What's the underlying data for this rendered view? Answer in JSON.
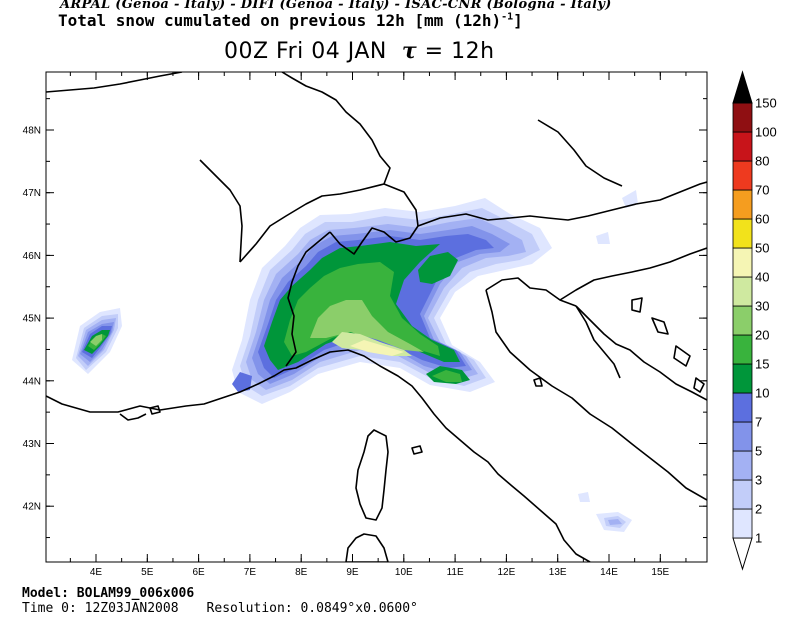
{
  "header": {
    "credits": "ARPAL (Genoa - Italy)  -  DIFI (Genoa - Italy)  -  ISAC-CNR (Bologna - Italy)",
    "title": "Total snow cumulated on previous 12h [mm (12h)",
    "title_sup": "-1",
    "title_end": "]",
    "valid_time": "00Z Fri 04 JAN",
    "tau_symbol": "τ",
    "tau_value": "= 12h"
  },
  "map": {
    "lat_labels": [
      "48N",
      "47N",
      "46N",
      "45N",
      "44N",
      "43N",
      "42N"
    ],
    "lon_labels": [
      "4E",
      "5E",
      "6E",
      "7E",
      "8E",
      "9E",
      "10E",
      "11E",
      "12E",
      "13E",
      "14E",
      "15E"
    ]
  },
  "colorbar": {
    "levels": [
      "1",
      "2",
      "3",
      "5",
      "7",
      "10",
      "15",
      "20",
      "30",
      "40",
      "50",
      "60",
      "70",
      "80",
      "100",
      "150"
    ],
    "colors": [
      "#ffffff",
      "#dfe6ff",
      "#c2cdf9",
      "#a3b1f3",
      "#8293ea",
      "#5c6fdf",
      "#00963a",
      "#39b33d",
      "#8bce6a",
      "#cfe9a0",
      "#f5f5b4",
      "#f2e21b",
      "#f59d1f",
      "#ee3a1f",
      "#c8141a",
      "#8f0f12",
      "#3a0606",
      "#000000"
    ]
  },
  "footer": {
    "model": "Model: BOLAM99_006x006",
    "time0": "Time 0: 12Z03JAN2008",
    "resolution": "Resolution: 0.0849°x0.0600°"
  }
}
